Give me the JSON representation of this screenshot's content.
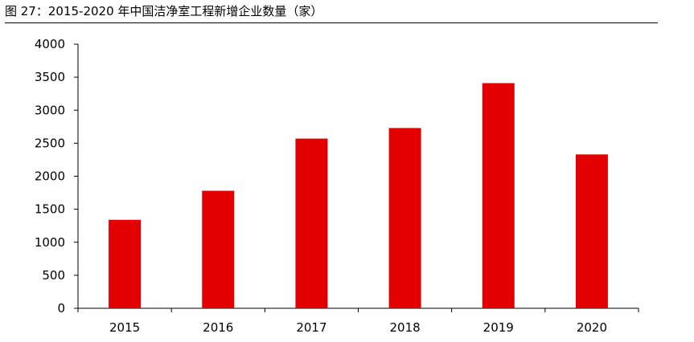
{
  "figure": {
    "title": "图 27：2015-2020 年中国洁净室工程新增企业数量（家）"
  },
  "chart_data": {
    "type": "bar",
    "title": "",
    "xlabel": "",
    "ylabel": "",
    "categories": [
      "2015",
      "2016",
      "2017",
      "2018",
      "2019",
      "2020"
    ],
    "values": [
      1340,
      1780,
      2570,
      2730,
      3410,
      2330
    ],
    "ylim": [
      0,
      4000
    ],
    "yticks": [
      0,
      500,
      1000,
      1500,
      2000,
      2500,
      3000,
      3500,
      4000
    ],
    "bar_color": "#E30000",
    "grid": false,
    "legend": "none"
  }
}
